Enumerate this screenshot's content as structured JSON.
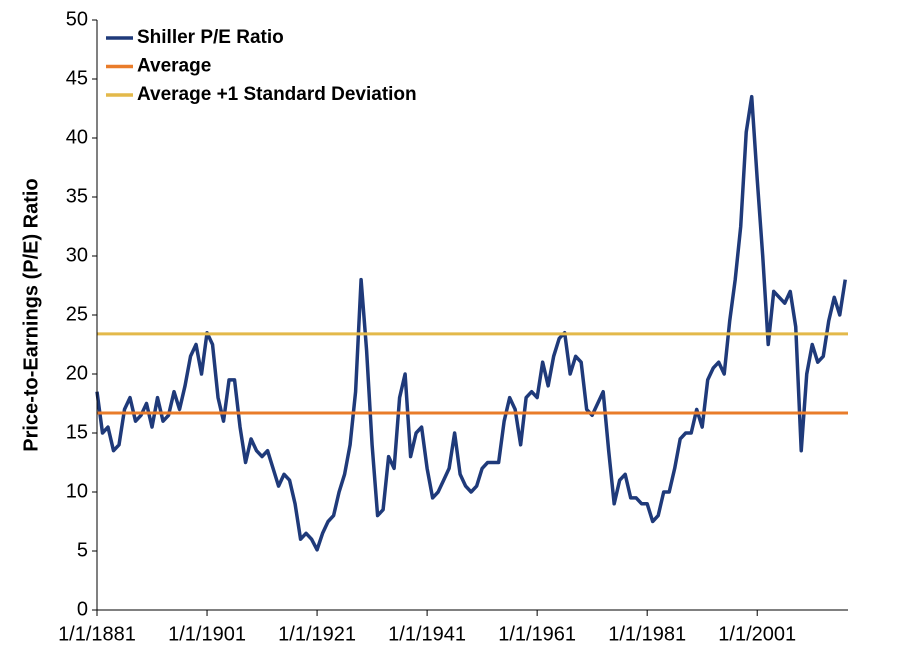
{
  "chart_data": {
    "type": "line",
    "y_label": "Price-to-Earnings (P/E) Ratio",
    "x": [
      1881,
      1882,
      1883,
      1884,
      1885,
      1886,
      1887,
      1888,
      1889,
      1890,
      1891,
      1892,
      1893,
      1894,
      1895,
      1896,
      1897,
      1898,
      1899,
      1900,
      1901,
      1902,
      1903,
      1904,
      1905,
      1906,
      1907,
      1908,
      1909,
      1910,
      1911,
      1912,
      1913,
      1914,
      1915,
      1916,
      1917,
      1918,
      1919,
      1920,
      1921,
      1922,
      1923,
      1924,
      1925,
      1926,
      1927,
      1928,
      1929,
      1930,
      1931,
      1932,
      1933,
      1934,
      1935,
      1936,
      1937,
      1938,
      1939,
      1940,
      1941,
      1942,
      1943,
      1944,
      1945,
      1946,
      1947,
      1948,
      1949,
      1950,
      1951,
      1952,
      1953,
      1954,
      1955,
      1956,
      1957,
      1958,
      1959,
      1960,
      1961,
      1962,
      1963,
      1964,
      1965,
      1966,
      1967,
      1968,
      1969,
      1970,
      1971,
      1972,
      1973,
      1974,
      1975,
      1976,
      1977,
      1978,
      1979,
      1980,
      1981,
      1982,
      1983,
      1984,
      1985,
      1986,
      1987,
      1988,
      1989,
      1990,
      1991,
      1992,
      1993,
      1994,
      1995,
      1996,
      1997,
      1998,
      1999,
      2000,
      2001,
      2002,
      2003,
      2004,
      2005,
      2006,
      2007,
      2008,
      2009,
      2010,
      2011,
      2012,
      2013,
      2014,
      2015,
      2016,
      2017
    ],
    "series": [
      {
        "name": "Shiller P/E Ratio",
        "color": "#1f3a7a",
        "values": [
          18.5,
          15,
          15.5,
          13.5,
          14,
          17,
          18,
          16,
          16.5,
          17.5,
          15.5,
          18,
          16,
          16.5,
          18.5,
          17,
          19,
          21.5,
          22.5,
          20,
          23.5,
          22.5,
          18,
          16,
          19.5,
          19.5,
          15.5,
          12.5,
          14.5,
          13.5,
          13,
          13.5,
          12,
          10.5,
          11.5,
          11,
          9,
          6,
          6.5,
          6,
          5.1,
          6.5,
          7.5,
          8,
          10,
          11.5,
          14,
          18.5,
          28,
          22,
          14,
          8,
          8.5,
          13,
          12,
          18,
          20,
          13,
          15,
          15.5,
          12,
          9.5,
          10,
          11,
          12,
          15,
          11.5,
          10.5,
          10,
          10.5,
          12,
          12.5,
          12.5,
          12.5,
          16,
          18,
          17,
          14,
          18,
          18.5,
          18,
          21,
          19,
          21.5,
          23,
          23.5,
          20,
          21.5,
          21,
          17,
          16.5,
          17.5,
          18.5,
          13.5,
          9,
          11,
          11.5,
          9.5,
          9.5,
          9,
          9,
          7.5,
          8,
          10,
          10,
          12,
          14.5,
          15,
          15,
          17,
          15.5,
          19.5,
          20.5,
          21,
          20,
          24.5,
          28,
          32.5,
          40.5,
          43.5,
          36.5,
          30,
          22.5,
          27,
          26.5,
          26,
          27,
          24,
          13.5,
          20,
          22.5,
          21,
          21.5,
          24.5,
          26.5,
          25,
          28
        ]
      }
    ],
    "hlines": [
      {
        "name": "Average",
        "color": "#e97c2a",
        "value": 16.7
      },
      {
        "name": "Average +1 Standard Deviation",
        "color": "#e3b94a",
        "value": 23.4
      }
    ],
    "xlim": [
      1881,
      2017.5
    ],
    "xticks": [
      {
        "value": 1881,
        "label": "1/1/1881"
      },
      {
        "value": 1901,
        "label": "1/1/1901"
      },
      {
        "value": 1921,
        "label": "1/1/1921"
      },
      {
        "value": 1941,
        "label": "1/1/1941"
      },
      {
        "value": 1961,
        "label": "1/1/1961"
      },
      {
        "value": 1981,
        "label": "1/1/1981"
      },
      {
        "value": 2001,
        "label": "1/1/2001"
      }
    ],
    "ylim": [
      0,
      50
    ],
    "yticks": [
      0,
      5,
      10,
      15,
      20,
      25,
      30,
      35,
      40,
      45,
      50
    ]
  }
}
